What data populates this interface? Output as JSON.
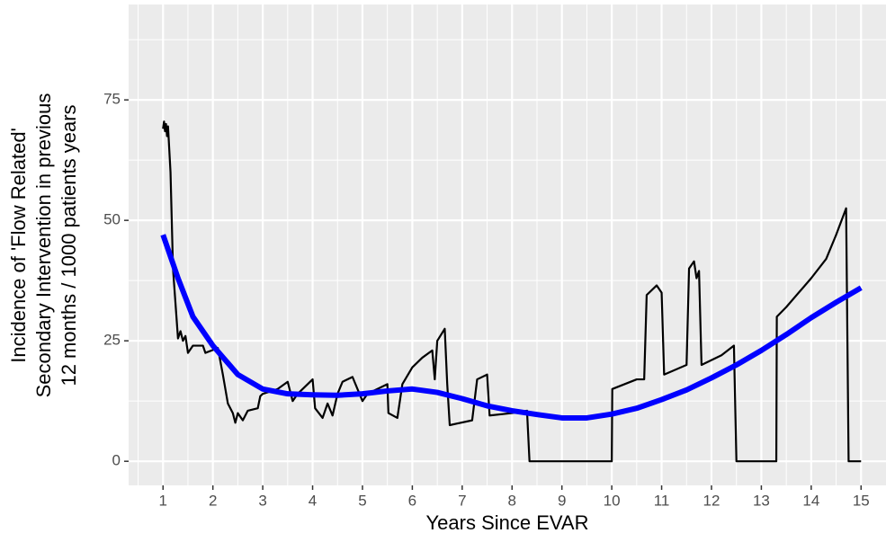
{
  "chart_data": {
    "type": "line",
    "x_label": "Years Since EVAR",
    "y_label_lines": [
      "Incidence of 'Flow Related'",
      "Secondary Intervention in previous",
      "12 months / 1000 patients years"
    ],
    "xlim": [
      0.31,
      15.5
    ],
    "ylim": [
      -5,
      94.8
    ],
    "xticks": [
      1,
      2,
      3,
      4,
      5,
      6,
      7,
      8,
      9,
      10,
      11,
      12,
      13,
      14,
      15
    ],
    "yticks": [
      0,
      25,
      50,
      75
    ],
    "grid": true,
    "series": [
      {
        "color": "#000000",
        "width": 2.2,
        "x": [
          1.0,
          1.02,
          1.04,
          1.06,
          1.08,
          1.1,
          1.15,
          1.2,
          1.3,
          1.35,
          1.4,
          1.45,
          1.5,
          1.6,
          1.8,
          1.85,
          2.1,
          2.2,
          2.3,
          2.4,
          2.45,
          2.5,
          2.6,
          2.7,
          2.9,
          2.95,
          3.0,
          3.3,
          3.5,
          3.6,
          3.7,
          3.9,
          4.0,
          4.05,
          4.2,
          4.3,
          4.4,
          4.5,
          4.6,
          4.8,
          5.0,
          5.1,
          5.5,
          5.52,
          5.7,
          5.8,
          6.0,
          6.2,
          6.4,
          6.45,
          6.5,
          6.65,
          6.7,
          6.75,
          7.2,
          7.3,
          7.5,
          7.55,
          8.0,
          8.3,
          8.35,
          10.0,
          10.01,
          10.5,
          10.65,
          10.7,
          10.9,
          11.0,
          11.05,
          11.5,
          11.55,
          11.65,
          11.7,
          11.75,
          11.8,
          12.0,
          12.2,
          12.45,
          12.5,
          13.3,
          13.31,
          13.5,
          14.0,
          14.3,
          14.5,
          14.7,
          14.75,
          15.0
        ],
        "values": [
          69,
          70.5,
          68.5,
          70,
          67.5,
          69.5,
          60,
          40,
          25.5,
          27,
          25,
          26,
          22.5,
          24,
          24,
          22.5,
          23.5,
          18,
          12,
          10,
          8,
          10,
          8.5,
          10.5,
          11,
          13.5,
          14,
          15,
          16.5,
          12.5,
          14,
          16,
          17,
          11,
          9,
          12,
          9.5,
          14,
          16.5,
          17.5,
          12.5,
          14,
          16,
          10,
          9,
          16,
          19.5,
          21.5,
          23,
          17,
          25,
          27.5,
          16,
          7.5,
          8.5,
          17,
          18,
          9.5,
          10,
          10.5,
          0,
          0,
          15,
          17,
          17,
          34.5,
          36.5,
          35,
          18,
          20,
          40,
          41.5,
          38,
          39.5,
          20,
          21,
          22,
          24,
          0,
          0,
          30,
          32,
          38,
          42,
          47,
          52.5,
          0,
          0
        ]
      },
      {
        "color": "#0000ff",
        "width": 6,
        "x": [
          1.0,
          1.3,
          1.6,
          2.0,
          2.5,
          3.0,
          3.5,
          4.0,
          4.5,
          5.0,
          5.5,
          6.0,
          6.5,
          7.0,
          7.5,
          8.0,
          8.5,
          9.0,
          9.5,
          10.0,
          10.5,
          11.0,
          11.5,
          12.0,
          12.5,
          13.0,
          13.5,
          14.0,
          14.5,
          15.0
        ],
        "values": [
          47,
          38,
          30,
          24,
          18,
          15,
          14,
          13.8,
          13.7,
          14,
          14.6,
          15,
          14.3,
          13,
          11.5,
          10.5,
          9.7,
          9,
          9,
          9.8,
          11,
          12.8,
          14.8,
          17.3,
          20,
          23,
          26.3,
          29.8,
          33,
          36
        ]
      }
    ]
  }
}
